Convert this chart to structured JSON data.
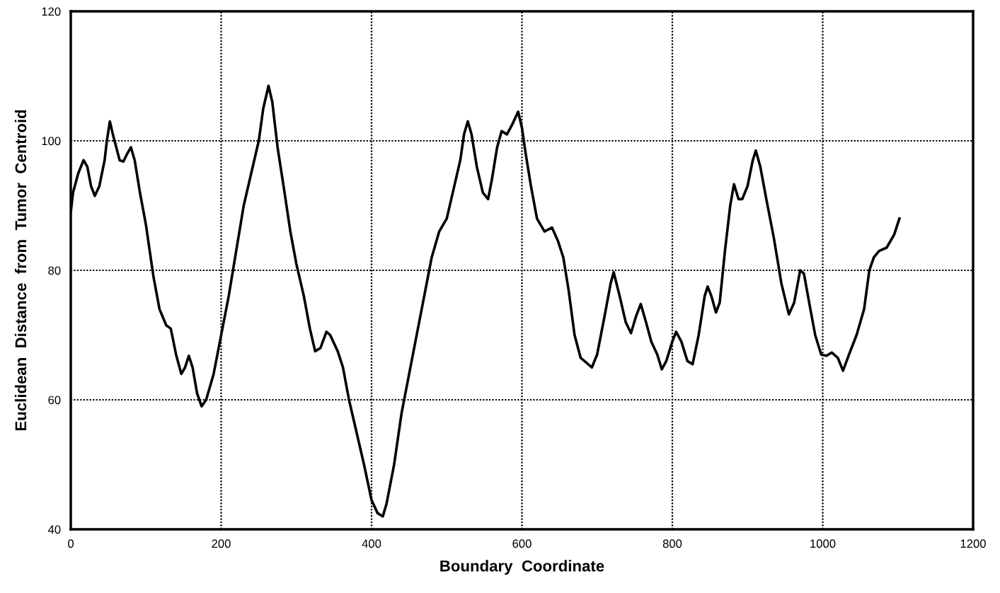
{
  "chart_data": {
    "type": "line",
    "xlabel": "Boundary  Coordinate",
    "ylabel": "Euclidean  Distance  from  Tumor  Centroid",
    "xlim": [
      0,
      1200
    ],
    "xticks": [
      0,
      200,
      400,
      600,
      800,
      1000,
      1200
    ],
    "ylim": [
      40,
      120
    ],
    "yticks": [
      40,
      60,
      80,
      100,
      120
    ],
    "grid": true,
    "line_style": "solid",
    "marker": "none",
    "series": [
      {
        "color": "#000000",
        "x": [
          0,
          3,
          10,
          17,
          22,
          27,
          32,
          38,
          45,
          48,
          52,
          56,
          65,
          70,
          75,
          80,
          85,
          92,
          100,
          110,
          118,
          127,
          133,
          140,
          147,
          152,
          157,
          162,
          168,
          174,
          180,
          190,
          200,
          210,
          220,
          230,
          240,
          250,
          256,
          263,
          268,
          275,
          283,
          292,
          300,
          310,
          318,
          325,
          332,
          340,
          345,
          355,
          362,
          370,
          380,
          390,
          400,
          408,
          415,
          420,
          430,
          440,
          450,
          460,
          470,
          480,
          490,
          500,
          510,
          518,
          523,
          528,
          533,
          540,
          548,
          555,
          560,
          567,
          573,
          580,
          587,
          595,
          600,
          605,
          612,
          620,
          630,
          640,
          648,
          655,
          662,
          670,
          678,
          685,
          693,
          700,
          710,
          718,
          722,
          730,
          738,
          745,
          752,
          758,
          765,
          772,
          780,
          786,
          792,
          800,
          805,
          812,
          820,
          827,
          835,
          843,
          847,
          852,
          858,
          863,
          870,
          877,
          882,
          888,
          893,
          900,
          907,
          911,
          917,
          925,
          935,
          945,
          955,
          962,
          970,
          975,
          982,
          990,
          998,
          1005,
          1012,
          1020,
          1027,
          1035,
          1045,
          1055,
          1062,
          1068,
          1075,
          1085,
          1095,
          1102
        ],
        "values": [
          89,
          92,
          95,
          97,
          96,
          93,
          91.5,
          93,
          97,
          100,
          103,
          101,
          97,
          96.8,
          98,
          99,
          97,
          92,
          87,
          79,
          74,
          71.5,
          71,
          67,
          64,
          65,
          66.8,
          65,
          61,
          59,
          60,
          64,
          70,
          76,
          83,
          90,
          95,
          100,
          105,
          108.5,
          106,
          99,
          93,
          86,
          81,
          76,
          71,
          67.5,
          68,
          70.5,
          70,
          67.5,
          65,
          60,
          55,
          50,
          44.5,
          42.5,
          42,
          44,
          50,
          58,
          64,
          70,
          76,
          82,
          86,
          88,
          93,
          97,
          101,
          103,
          101,
          96,
          92,
          91,
          94,
          99,
          101.5,
          101,
          102.5,
          104.5,
          102,
          98,
          93,
          88,
          86,
          86.6,
          84.5,
          82,
          77,
          70,
          66.5,
          65.8,
          65,
          67,
          73,
          78,
          79.7,
          76,
          72,
          70.3,
          73,
          74.8,
          72,
          69,
          67,
          64.7,
          66,
          69,
          70.5,
          69,
          66,
          65.5,
          70,
          76,
          77.5,
          76,
          73.5,
          75,
          83,
          90,
          93.3,
          91,
          91,
          93,
          97,
          98.5,
          96,
          91,
          85,
          78,
          73.2,
          75,
          80,
          79.5,
          75,
          70,
          67,
          66.8,
          67.3,
          66.5,
          64.5,
          67,
          70,
          74,
          80,
          82,
          83,
          83.5,
          85.5,
          88
        ]
      }
    ]
  }
}
